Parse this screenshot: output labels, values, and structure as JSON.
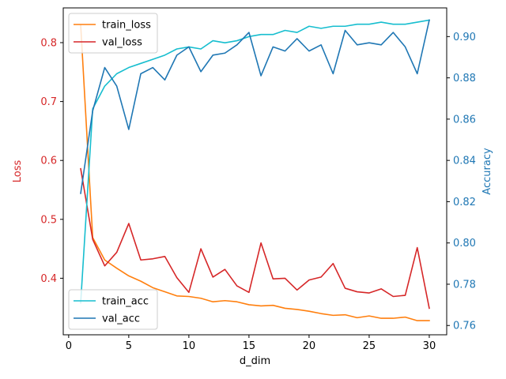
{
  "chart_data": {
    "type": "line",
    "xlabel": "d_dim",
    "ylabel_left": "Loss",
    "ylabel_right": "Accuracy",
    "xlim": [
      -0.45,
      31.45
    ],
    "ylim_left": [
      0.304,
      0.859
    ],
    "ylim_right": [
      0.7555,
      0.9139
    ],
    "x_ticks": [
      0,
      5,
      10,
      15,
      20,
      25,
      30
    ],
    "y_ticks_left": [
      0.4,
      0.5,
      0.6,
      0.7,
      0.8
    ],
    "y_ticks_right": [
      0.76,
      0.78,
      0.8,
      0.82,
      0.84,
      0.86,
      0.88,
      0.9
    ],
    "x": [
      1,
      2,
      3,
      4,
      5,
      6,
      7,
      8,
      9,
      10,
      11,
      12,
      13,
      14,
      15,
      16,
      17,
      18,
      19,
      20,
      21,
      22,
      23,
      24,
      25,
      26,
      27,
      28,
      29,
      30
    ],
    "left_series": [
      {
        "name": "train_loss",
        "color": "#ff7f0e",
        "values": [
          0.83,
          0.469,
          0.431,
          0.417,
          0.404,
          0.395,
          0.384,
          0.377,
          0.37,
          0.369,
          0.366,
          0.36,
          0.362,
          0.36,
          0.355,
          0.353,
          0.354,
          0.349,
          0.347,
          0.344,
          0.34,
          0.337,
          0.338,
          0.333,
          0.336,
          0.332,
          0.332,
          0.334,
          0.328,
          0.328
        ]
      },
      {
        "name": "val_loss",
        "color": "#d62728",
        "values": [
          0.586,
          0.466,
          0.421,
          0.444,
          0.493,
          0.431,
          0.433,
          0.437,
          0.401,
          0.376,
          0.45,
          0.402,
          0.415,
          0.387,
          0.376,
          0.46,
          0.399,
          0.4,
          0.38,
          0.397,
          0.402,
          0.425,
          0.383,
          0.377,
          0.375,
          0.382,
          0.369,
          0.371,
          0.452,
          0.349
        ]
      }
    ],
    "right_series": [
      {
        "name": "train_acc",
        "color": "#17becf",
        "values": [
          0.771,
          0.865,
          0.876,
          0.882,
          0.885,
          0.887,
          0.889,
          0.891,
          0.894,
          0.895,
          0.894,
          0.898,
          0.897,
          0.898,
          0.9,
          0.901,
          0.901,
          0.903,
          0.902,
          0.905,
          0.904,
          0.905,
          0.905,
          0.906,
          0.906,
          0.907,
          0.906,
          0.906,
          0.907,
          0.908
        ]
      },
      {
        "name": "val_acc",
        "color": "#1f77b4",
        "values": [
          0.824,
          0.864,
          0.885,
          0.876,
          0.855,
          0.882,
          0.885,
          0.879,
          0.891,
          0.895,
          0.883,
          0.891,
          0.892,
          0.896,
          0.902,
          0.881,
          0.895,
          0.893,
          0.899,
          0.893,
          0.896,
          0.882,
          0.903,
          0.896,
          0.897,
          0.896,
          0.902,
          0.895,
          0.882,
          0.908
        ]
      }
    ],
    "legends": {
      "left_position": "upper-left",
      "right_position": "lower-left"
    },
    "grid": false
  }
}
